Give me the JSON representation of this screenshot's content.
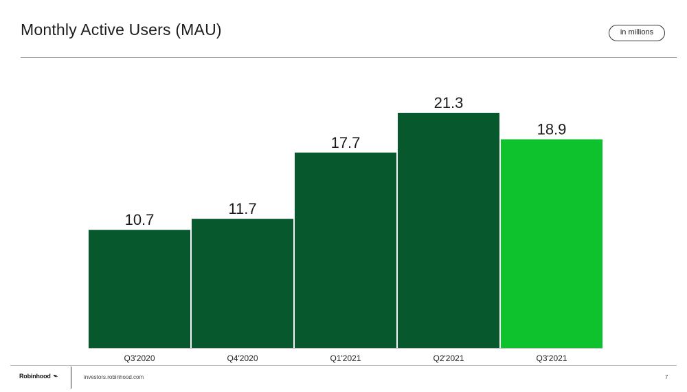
{
  "header": {
    "title": "Monthly Active Users (MAU)",
    "unit_badge": "in millions"
  },
  "footer": {
    "brand": "Robinhood",
    "brand_icon": "feather-icon",
    "site": "investors.robinhood.com",
    "page_number": "7"
  },
  "colors": {
    "bar": "#07592d",
    "highlight_bar": "#0ec22d"
  },
  "chart_data": {
    "type": "bar",
    "title": "Monthly Active Users (MAU)",
    "unit": "in millions",
    "categories": [
      "Q3'2020",
      "Q4'2020",
      "Q1'2021",
      "Q2'2021",
      "Q3'2021"
    ],
    "values": [
      10.7,
      11.7,
      17.7,
      21.3,
      18.9
    ],
    "value_labels": [
      "10.7",
      "11.7",
      "17.7",
      "21.3",
      "18.9"
    ],
    "highlight_index": 4,
    "ylim": [
      0,
      21.3
    ],
    "grid": false,
    "legend": "none"
  }
}
